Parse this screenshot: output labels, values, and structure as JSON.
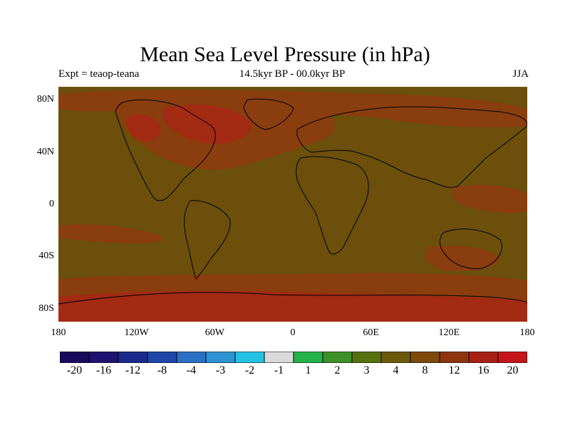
{
  "title": "Mean Sea Level Pressure (in hPa)",
  "subtitle_left": "Expt = teaop-teana",
  "subtitle_center": "14.5kyr BP - 00.0kyr BP",
  "subtitle_right": "JJA",
  "colors": {
    "background_field": "#6b4f0b",
    "warm_moderate": "#8a3d0f",
    "warm_strong": "#a32a13",
    "coastline": "#000000"
  },
  "chart_data": {
    "type": "heatmap",
    "map_projection": "cylindrical equidistant",
    "lon_range": [
      -180,
      180
    ],
    "lat_range": [
      -90,
      90
    ],
    "x_ticks": [
      {
        "value": -180,
        "label": "180"
      },
      {
        "value": -120,
        "label": "120W"
      },
      {
        "value": -60,
        "label": "60W"
      },
      {
        "value": 0,
        "label": "0"
      },
      {
        "value": 60,
        "label": "60E"
      },
      {
        "value": 120,
        "label": "120E"
      },
      {
        "value": 180,
        "label": "180"
      }
    ],
    "y_ticks": [
      {
        "value": 80,
        "label": "80N"
      },
      {
        "value": 40,
        "label": "40N"
      },
      {
        "value": 0,
        "label": "0"
      },
      {
        "value": -40,
        "label": "40S"
      },
      {
        "value": -80,
        "label": "80S"
      }
    ],
    "colorbar": {
      "colors": [
        "#1a0a5c",
        "#1e136f",
        "#1c2a8c",
        "#1d48a8",
        "#2a70c3",
        "#2d93d2",
        "#23c2e3",
        "#d9d9d9",
        "#24b24a",
        "#3d8f27",
        "#56700f",
        "#6b5a0b",
        "#7d4a0c",
        "#8e3510",
        "#a81f16",
        "#c6151a"
      ],
      "labels": [
        "-20",
        "-16",
        "-12",
        "-8",
        "-4",
        "-3",
        "-2",
        "-1",
        "1",
        "2",
        "3",
        "4",
        "8",
        "12",
        "16",
        "20"
      ]
    },
    "field_description_regions": [
      {
        "lon": [
          -180,
          180
        ],
        "lat": [
          -90,
          90
        ],
        "level": "4 to 8"
      },
      {
        "lon": [
          -120,
          30
        ],
        "lat": [
          30,
          85
        ],
        "level": "8 to 16"
      },
      {
        "lon": [
          -100,
          -20
        ],
        "lat": [
          55,
          80
        ],
        "level": "16 to 20"
      },
      {
        "lon": [
          -180,
          180
        ],
        "lat": [
          -90,
          -60
        ],
        "level": "12 to 20"
      }
    ]
  }
}
